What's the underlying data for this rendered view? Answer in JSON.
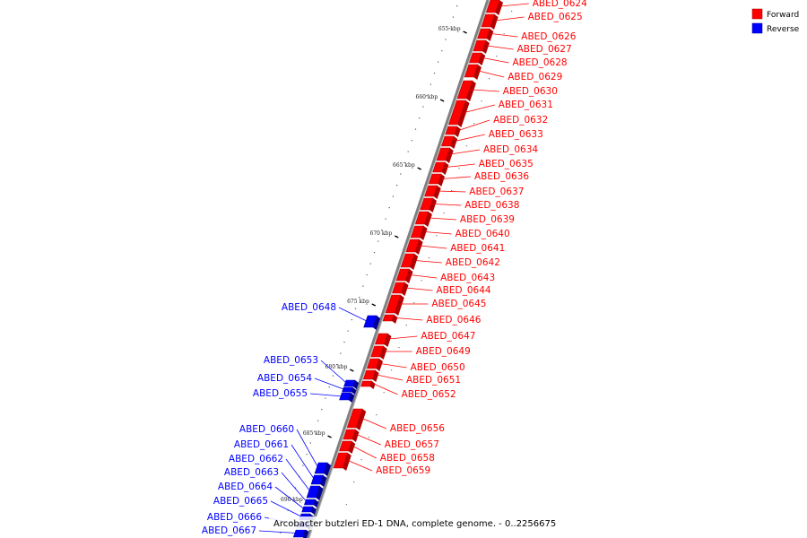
{
  "caption": "Arcobacter butzleri ED-1 DNA, complete genome. - 0..2256675",
  "legend": [
    {
      "label": "Forward",
      "color": "#ff0000"
    },
    {
      "label": "Reverse",
      "color": "#0000ff"
    }
  ],
  "colors": {
    "forward": "#ff0000",
    "reverse": "#0000ff",
    "backbone": "#808080"
  },
  "ticks": [
    "655 kbp",
    "660 kbp",
    "665 kbp",
    "670 kbp",
    "675 kbp",
    "680 kbp",
    "685 kbp",
    "690 kbp"
  ],
  "forward_genes": [
    "ABED_0624",
    "ABED_0625",
    "ABED_0626",
    "ABED_0627",
    "ABED_0628",
    "ABED_0629",
    "ABED_0630",
    "ABED_0631",
    "ABED_0632",
    "ABED_0633",
    "ABED_0634",
    "ABED_0635",
    "ABED_0636",
    "ABED_0637",
    "ABED_0638",
    "ABED_0639",
    "ABED_0640",
    "ABED_0641",
    "ABED_0642",
    "ABED_0643",
    "ABED_0644",
    "ABED_0645",
    "ABED_0646",
    "ABED_0647",
    "ABED_0649",
    "ABED_0650",
    "ABED_0651",
    "ABED_0652",
    "ABED_0656",
    "ABED_0657",
    "ABED_0658",
    "ABED_0659"
  ],
  "reverse_genes": [
    "ABED_0648",
    "ABED_0653",
    "ABED_0654",
    "ABED_0655",
    "ABED_0660",
    "ABED_0661",
    "ABED_0662",
    "ABED_0663",
    "ABED_0664",
    "ABED_0665",
    "ABED_0666",
    "ABED_0667"
  ]
}
